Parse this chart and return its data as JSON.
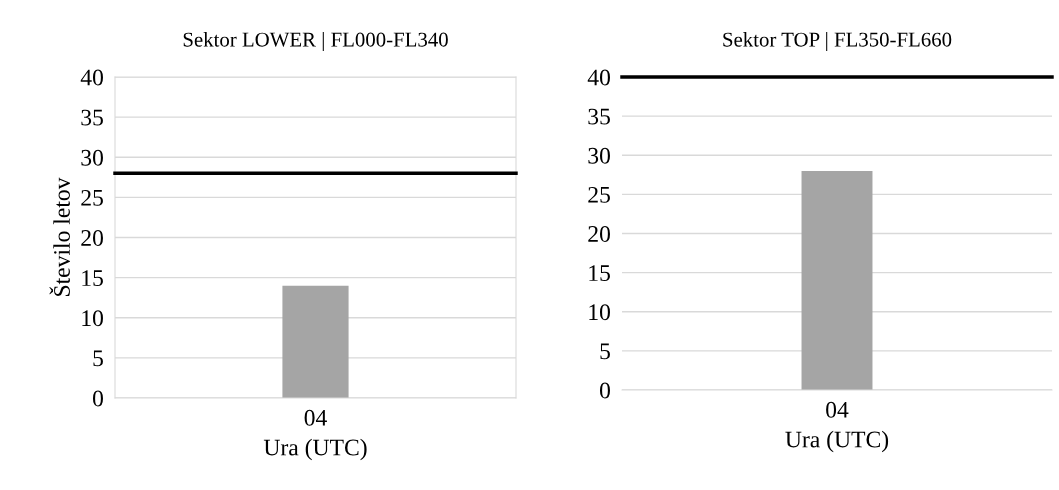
{
  "chart_data": [
    {
      "type": "bar",
      "title": "Sektor LOWER | FL000-FL340",
      "categories": [
        "04"
      ],
      "values": [
        14
      ],
      "color": "#a5a5a5",
      "xlabel": "Ura (UTC)",
      "ylabel": "Število letov",
      "ylim": [
        0,
        40
      ],
      "yticks": [
        0,
        5,
        10,
        15,
        20,
        25,
        30,
        35,
        40
      ],
      "grid": "y",
      "ref_lines": [
        {
          "axis": "y",
          "value": 28,
          "color": "#000000"
        }
      ]
    },
    {
      "type": "bar",
      "title": "Sektor TOP | FL350-FL660",
      "categories": [
        "04"
      ],
      "values": [
        28
      ],
      "color": "#a5a5a5",
      "xlabel": "Ura (UTC)",
      "ylim": [
        0,
        40
      ],
      "yticks": [
        0,
        5,
        10,
        15,
        20,
        25,
        30,
        35,
        40
      ],
      "grid": "y",
      "ref_lines": [
        {
          "axis": "y",
          "value": 40,
          "color": "#000000"
        }
      ]
    }
  ]
}
